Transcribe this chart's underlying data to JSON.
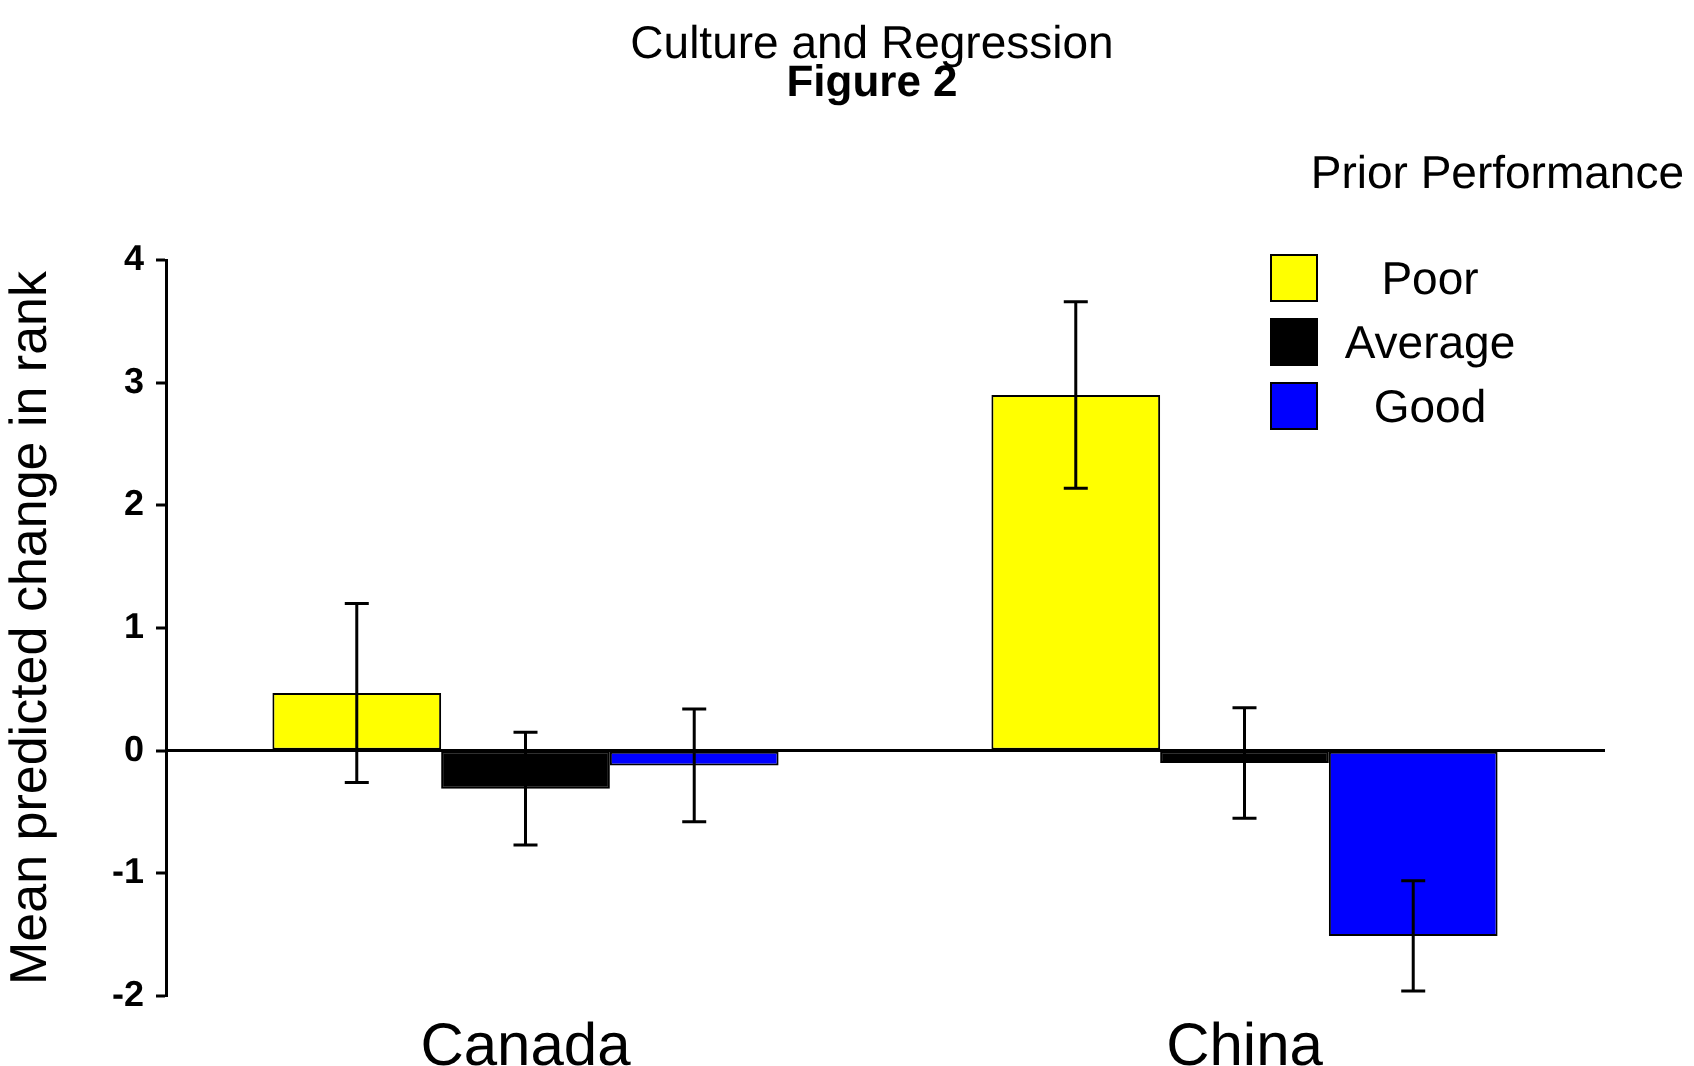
{
  "chart_data": {
    "type": "bar",
    "title": "Culture and Regression",
    "subtitle": "Figure 2",
    "ylabel": "Mean predicted change in rank",
    "legend_title": "Prior Performance",
    "legend": "top right",
    "categories": [
      "Canada",
      "China"
    ],
    "series": [
      {
        "name": "Poor",
        "color": "#ffff00",
        "values": [
          0.47,
          2.9
        ],
        "errors": [
          0.73,
          0.76
        ]
      },
      {
        "name": "Average",
        "color": "#000000",
        "values": [
          -0.31,
          -0.1
        ],
        "errors": [
          0.46,
          0.45
        ]
      },
      {
        "name": "Good",
        "color": "#0000ff",
        "values": [
          -0.12,
          -1.51
        ],
        "errors": [
          0.46,
          0.45
        ]
      }
    ],
    "ylim": [
      -2,
      4
    ],
    "yticks": [
      -2,
      -1,
      0,
      1,
      2,
      3,
      4
    ]
  }
}
